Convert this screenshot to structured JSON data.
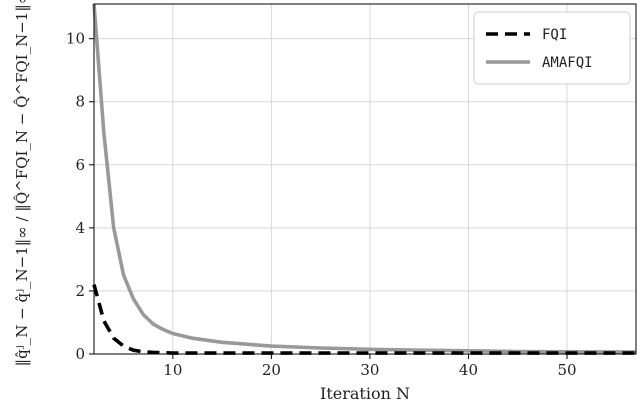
{
  "chart_data": {
    "type": "line",
    "xlabel": "Iteration N",
    "ylabel": "‖q̂ʲ_N − q̂ʲ_N−1‖∞ / ‖Q̂^FQI_N − Q̂^FQI_N−1‖∞",
    "xlim": [
      2,
      57
    ],
    "ylim": [
      0,
      11.1
    ],
    "xticks": [
      10,
      20,
      30,
      40,
      50
    ],
    "yticks": [
      0,
      2,
      4,
      6,
      8,
      10
    ],
    "grid": true,
    "legend_position": "top-right",
    "series": [
      {
        "name": "FQI",
        "color": "#000000",
        "dash": "dashed",
        "x": [
          2,
          3,
          4,
          5,
          6,
          7,
          8,
          9,
          10,
          12,
          15,
          20,
          30,
          40,
          50,
          57
        ],
        "y": [
          2.2,
          1.05,
          0.5,
          0.25,
          0.12,
          0.07,
          0.05,
          0.04,
          0.03,
          0.03,
          0.03,
          0.03,
          0.03,
          0.03,
          0.03,
          0.03
        ]
      },
      {
        "name": "AMAFQI",
        "color": "#999999",
        "dash": "solid",
        "x": [
          2,
          3,
          4,
          5,
          6,
          7,
          8,
          9,
          10,
          12,
          15,
          20,
          25,
          30,
          35,
          40,
          45,
          50,
          57
        ],
        "y": [
          11.1,
          7.0,
          4.0,
          2.5,
          1.75,
          1.25,
          0.95,
          0.78,
          0.65,
          0.5,
          0.37,
          0.25,
          0.19,
          0.15,
          0.12,
          0.1,
          0.08,
          0.07,
          0.06
        ]
      }
    ]
  }
}
